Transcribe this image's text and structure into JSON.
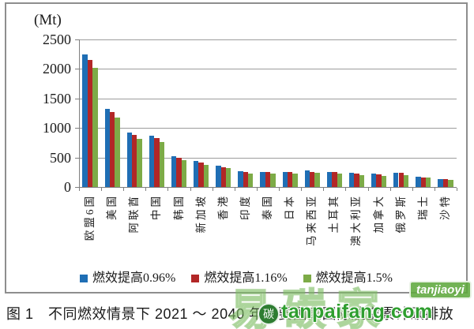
{
  "figure": {
    "unit_label": "(Mt)",
    "caption": "图 1　不同燃效情景下 2021 ～ 2040 年主要国家国际航空累计碳排放"
  },
  "watermark": {
    "logo_text": "易碳家",
    "badge_text": "tanjiaoyi",
    "circle_text": "碳",
    "site_text": "tanpaifang.com",
    "green": "#2f9e2f"
  },
  "chart_data": {
    "type": "bar",
    "title": "不同燃效情景下2021～2040年主要国家国际航空累计碳排放",
    "xlabel": "",
    "ylabel": "(Mt)",
    "ylim": [
      0,
      2500
    ],
    "yticks": [
      0,
      500,
      1000,
      1500,
      2000,
      2500
    ],
    "grid": true,
    "legend_position": "bottom",
    "categories": [
      "欧盟6国",
      "美国",
      "阿联酋",
      "中国",
      "韩国",
      "新加坡",
      "香港",
      "印度",
      "泰国",
      "日本",
      "马来西亚",
      "土耳其",
      "澳大利亚",
      "加拿大",
      "俄罗斯",
      "瑞士",
      "沙特"
    ],
    "series": [
      {
        "name": "燃效提高0.96%",
        "color": "#1f6eb4",
        "values": [
          2240,
          1320,
          920,
          870,
          520,
          440,
          360,
          265,
          260,
          260,
          275,
          255,
          235,
          230,
          240,
          175,
          135
        ]
      },
      {
        "name": "燃效提高1.16%",
        "color": "#b22727",
        "values": [
          2150,
          1270,
          880,
          830,
          490,
          410,
          340,
          250,
          255,
          255,
          260,
          250,
          230,
          220,
          235,
          165,
          130
        ]
      },
      {
        "name": "燃效提高1.5%",
        "color": "#7dab47",
        "values": [
          2020,
          1180,
          810,
          760,
          460,
          380,
          315,
          230,
          225,
          230,
          245,
          230,
          195,
          190,
          205,
          155,
          125
        ]
      }
    ]
  }
}
